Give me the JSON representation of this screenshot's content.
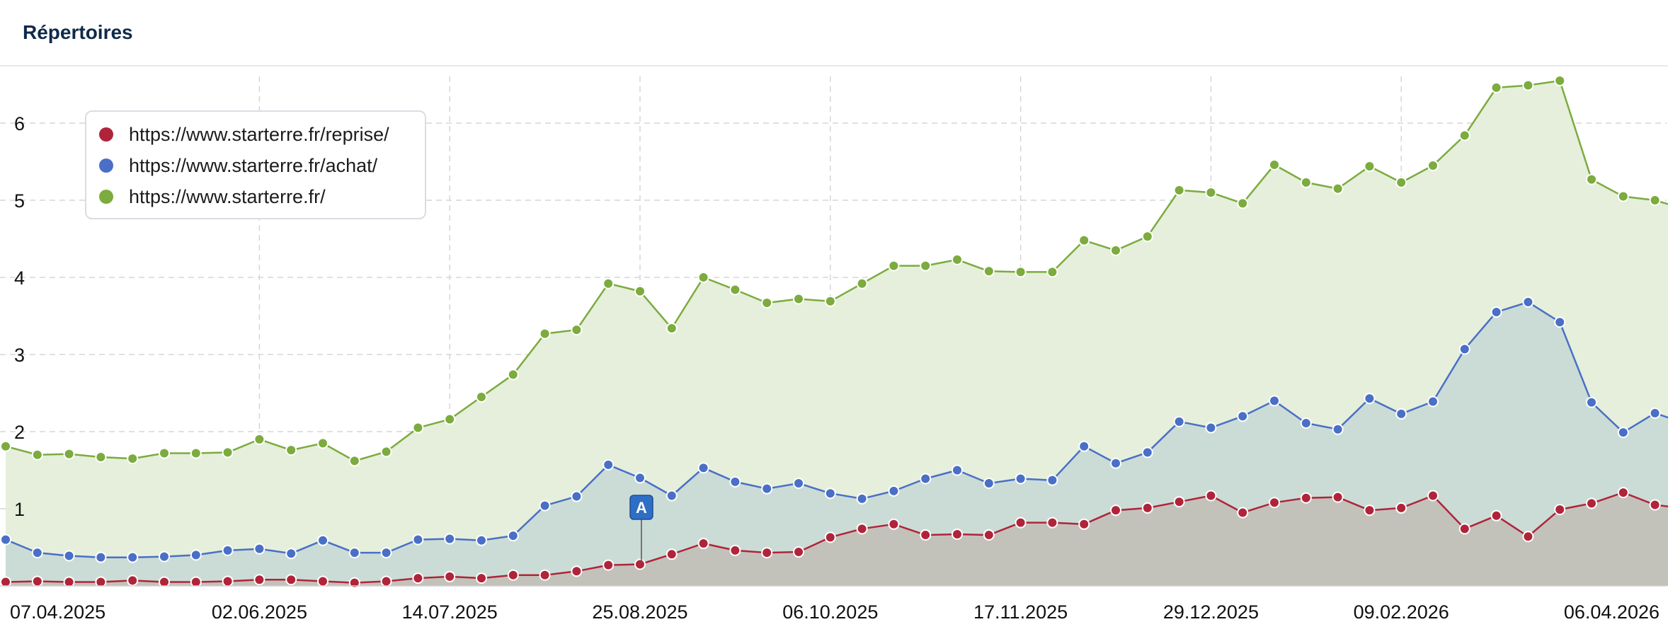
{
  "header": {
    "title": "Répertoires"
  },
  "chart_data": {
    "type": "area",
    "ylim": [
      0,
      6.6
    ],
    "y_ticks": [
      1,
      2,
      3,
      4,
      5,
      6
    ],
    "x_tick_labels": [
      "07.04.2025",
      "02.06.2025",
      "14.07.2025",
      "25.08.2025",
      "06.10.2025",
      "17.11.2025",
      "29.12.2025",
      "09.02.2026",
      "06.04.2026"
    ],
    "x_tick_indices": [
      0,
      8,
      14,
      20,
      26,
      32,
      38,
      44,
      52
    ],
    "grid": true,
    "legend_position": "top-left",
    "annotations": [
      {
        "label": "A",
        "x_index": 20,
        "value": 1.4
      }
    ],
    "series": [
      {
        "name": "https://www.starterre.fr/",
        "color": "#7cab3e",
        "fill": "#e5efdb",
        "values": [
          1.81,
          1.7,
          1.71,
          1.67,
          1.65,
          1.72,
          1.72,
          1.73,
          1.9,
          1.76,
          1.85,
          1.62,
          1.74,
          2.05,
          2.16,
          2.45,
          2.74,
          3.27,
          3.32,
          3.92,
          3.82,
          3.34,
          4.0,
          3.84,
          3.67,
          3.72,
          3.69,
          3.92,
          4.15,
          4.15,
          4.23,
          4.08,
          4.07,
          4.07,
          4.48,
          4.35,
          4.53,
          5.13,
          5.1,
          4.96,
          5.46,
          5.23,
          5.15,
          5.44,
          5.23,
          5.45,
          5.84,
          6.46,
          6.49,
          6.55,
          5.27,
          5.05,
          5.0,
          4.88
        ]
      },
      {
        "name": "https://www.starterre.fr/achat/",
        "color": "#4a6fc7",
        "fill": "#cbdcd6",
        "values": [
          0.6,
          0.43,
          0.39,
          0.37,
          0.37,
          0.38,
          0.4,
          0.46,
          0.48,
          0.42,
          0.59,
          0.43,
          0.43,
          0.6,
          0.61,
          0.59,
          0.65,
          1.04,
          1.16,
          1.57,
          1.4,
          1.17,
          1.53,
          1.35,
          1.26,
          1.33,
          1.2,
          1.13,
          1.23,
          1.39,
          1.5,
          1.33,
          1.39,
          1.37,
          1.81,
          1.59,
          1.73,
          2.13,
          2.05,
          2.2,
          2.4,
          2.11,
          2.03,
          2.43,
          2.23,
          2.39,
          3.07,
          3.55,
          3.68,
          3.42,
          2.38,
          1.99,
          2.24,
          2.1
        ]
      },
      {
        "name": "https://www.starterre.fr/reprise/",
        "color": "#b0243a",
        "fill": "#c2c2bb",
        "values": [
          0.05,
          0.06,
          0.05,
          0.05,
          0.07,
          0.05,
          0.05,
          0.06,
          0.08,
          0.08,
          0.06,
          0.04,
          0.06,
          0.1,
          0.12,
          0.1,
          0.14,
          0.14,
          0.19,
          0.27,
          0.28,
          0.41,
          0.55,
          0.46,
          0.43,
          0.44,
          0.63,
          0.74,
          0.8,
          0.66,
          0.67,
          0.66,
          0.82,
          0.82,
          0.8,
          0.98,
          1.01,
          1.09,
          1.17,
          0.95,
          1.08,
          1.14,
          1.15,
          0.98,
          1.01,
          1.17,
          0.74,
          0.91,
          0.64,
          0.99,
          1.07,
          1.21,
          1.05,
          1.0
        ]
      }
    ],
    "legend_order": [
      "https://www.starterre.fr/reprise/",
      "https://www.starterre.fr/achat/",
      "https://www.starterre.fr/"
    ]
  }
}
